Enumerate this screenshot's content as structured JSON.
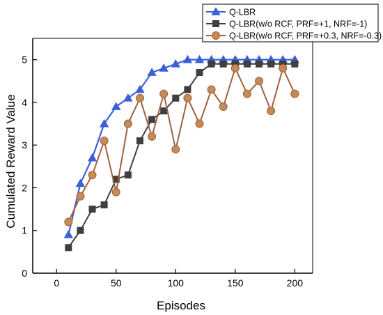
{
  "chart_data": {
    "type": "line",
    "title": "",
    "xlabel": "Episodes",
    "ylabel": "Cumulated Reward Value",
    "xlim": [
      -20,
      215
    ],
    "ylim": [
      0,
      5.5
    ],
    "x_ticks": [
      0,
      50,
      100,
      150,
      200
    ],
    "y_ticks": [
      0,
      1,
      2,
      3,
      4,
      5
    ],
    "grid": false,
    "legend_position": "top-right",
    "x": [
      10,
      20,
      30,
      40,
      50,
      60,
      70,
      80,
      90,
      100,
      110,
      120,
      130,
      140,
      150,
      160,
      170,
      180,
      190,
      200
    ],
    "series": [
      {
        "name": "Q-LBR",
        "color": "#3a5fd9",
        "marker": "triangle",
        "values": [
          0.9,
          2.1,
          2.7,
          3.5,
          3.9,
          4.1,
          4.3,
          4.7,
          4.8,
          4.9,
          5.0,
          5.0,
          5.0,
          5.0,
          5.0,
          5.0,
          5.0,
          5.0,
          5.0,
          5.0
        ]
      },
      {
        "name": "Q-LBR(w/o RCF, PRF=+1, NRF=-1)",
        "color": "#3f3f3f",
        "marker": "square",
        "values": [
          0.6,
          1.0,
          1.5,
          1.6,
          2.2,
          2.3,
          3.1,
          3.6,
          3.8,
          4.1,
          4.3,
          4.7,
          4.9,
          4.9,
          4.9,
          4.9,
          4.9,
          4.9,
          4.9,
          4.9
        ]
      },
      {
        "name": "Q-LBR(w/o RCF, PRF=+0.3, NRF=-0.3)",
        "color": "#a0603b",
        "marker_fill": "#c58a55",
        "marker": "circle",
        "values": [
          1.2,
          1.8,
          2.3,
          3.1,
          1.9,
          3.5,
          4.1,
          3.2,
          4.2,
          2.9,
          4.1,
          3.5,
          4.3,
          3.9,
          4.8,
          4.2,
          4.5,
          3.8,
          4.8,
          4.2
        ]
      }
    ]
  }
}
